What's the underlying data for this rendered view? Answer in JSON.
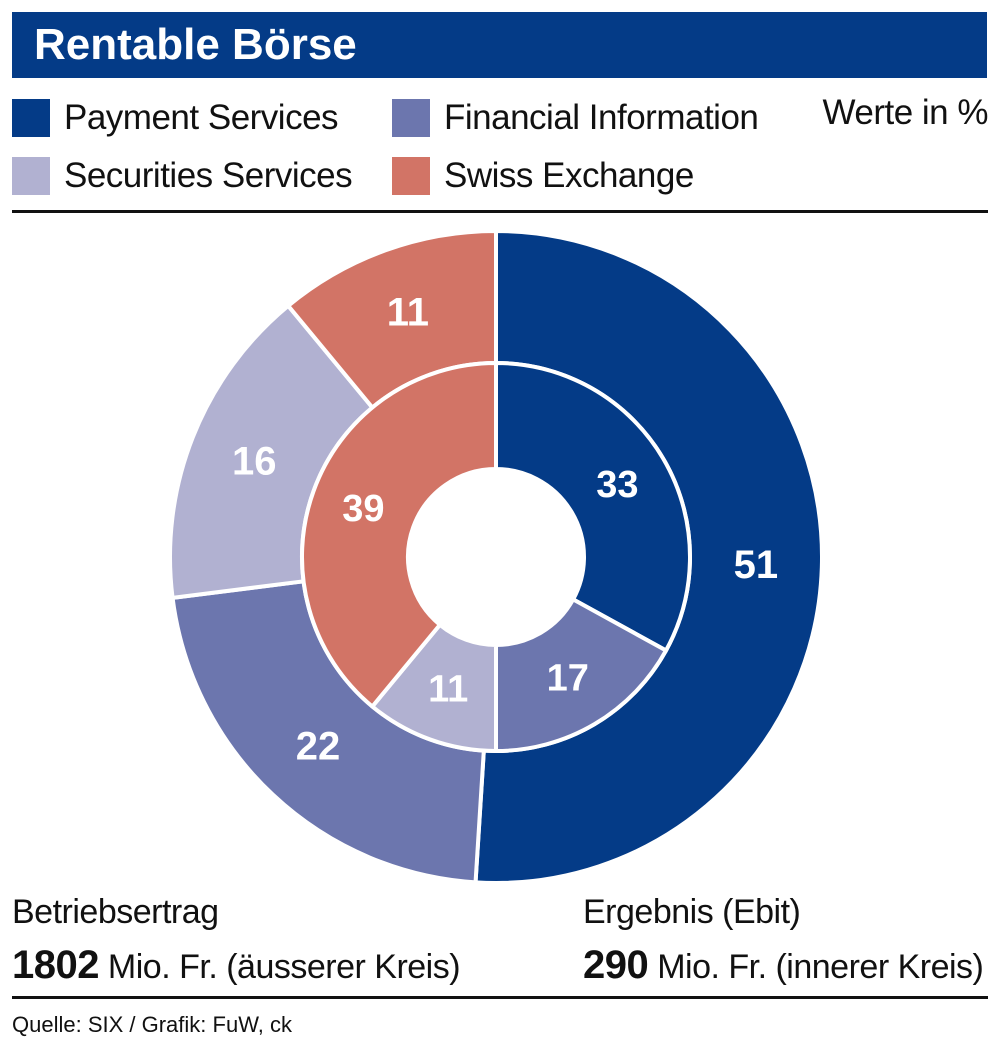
{
  "title": "Rentable Börse",
  "units_note": "Werte in %",
  "legend": [
    {
      "label": "Payment Services",
      "color": "#043b87"
    },
    {
      "label": "Financial Information",
      "color": "#6c76ae"
    },
    {
      "label": "Securities Services",
      "color": "#b1b1d1"
    },
    {
      "label": "Swiss Exchange",
      "color": "#d27466"
    }
  ],
  "chart_data": {
    "type": "pie",
    "subtype": "nested-donut",
    "categories": [
      "Payment Services",
      "Financial Information",
      "Securities Services",
      "Swiss Exchange"
    ],
    "series": [
      {
        "values": [
          51,
          22,
          16,
          11
        ]
      },
      {
        "values": [
          33,
          17,
          11,
          39
        ]
      }
    ],
    "colors": [
      "#043b87",
      "#6c76ae",
      "#b1b1d1",
      "#d27466"
    ],
    "unit": "%"
  },
  "footer": {
    "left": {
      "label": "Betriebsertrag",
      "value": "1802",
      "suffix": " Mio. Fr. (äusserer Kreis)"
    },
    "right": {
      "label": "Ergebnis (Ebit)",
      "value": "290",
      "suffix": " Mio. Fr. (innerer Kreis)"
    }
  },
  "source": "Quelle: SIX / Grafik: FuW, ck"
}
